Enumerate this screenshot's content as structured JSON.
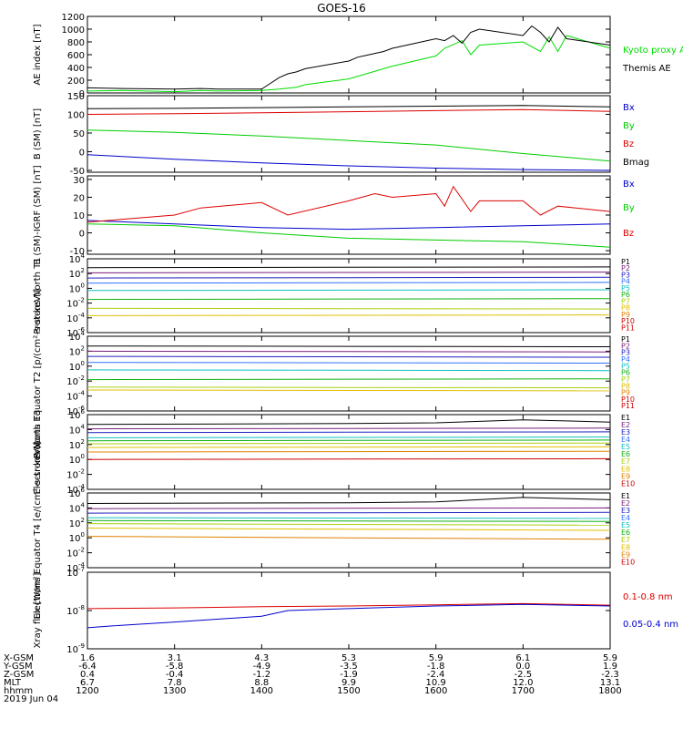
{
  "title": "GOES-16",
  "chart_data": [
    {
      "type": "line",
      "ylabel": "AE index [nT]",
      "yscale": "linear",
      "ylim": [
        0,
        1200
      ],
      "yticks": [
        "0",
        "200",
        "400",
        "600",
        "800",
        "1000",
        "1200"
      ],
      "xlim": [
        1200,
        1800
      ],
      "series": [
        {
          "name": "Kyoto proxy AE",
          "color": "#00dd00",
          "x": [
            1200,
            1240,
            1300,
            1330,
            1350,
            1400,
            1420,
            1440,
            1450,
            1500,
            1520,
            1540,
            1550,
            1600,
            1610,
            1630,
            1640,
            1650,
            1700,
            1720,
            1730,
            1740,
            1750,
            1800
          ],
          "y": [
            30,
            40,
            20,
            40,
            30,
            40,
            60,
            90,
            130,
            220,
            300,
            380,
            420,
            580,
            700,
            820,
            600,
            750,
            800,
            650,
            880,
            650,
            900,
            700
          ]
        },
        {
          "name": "Themis AE",
          "color": "#000000",
          "x": [
            1200,
            1240,
            1300,
            1330,
            1350,
            1400,
            1410,
            1420,
            1430,
            1440,
            1450,
            1500,
            1510,
            1520,
            1530,
            1540,
            1550,
            1600,
            1610,
            1620,
            1630,
            1640,
            1650,
            1700,
            1710,
            1720,
            1730,
            1740,
            1750,
            1800
          ],
          "y": [
            80,
            70,
            60,
            70,
            60,
            60,
            150,
            240,
            300,
            330,
            380,
            500,
            560,
            590,
            620,
            650,
            700,
            850,
            820,
            900,
            780,
            950,
            1000,
            900,
            1050,
            950,
            800,
            1030,
            850,
            750
          ]
        }
      ]
    },
    {
      "type": "line",
      "ylabel": "B (SM) [nT]",
      "yscale": "linear",
      "ylim": [
        -55,
        150
      ],
      "yticks": [
        "-50",
        "0",
        "50",
        "100",
        "150"
      ],
      "xlim": [
        1200,
        1800
      ],
      "series": [
        {
          "name": "Bx",
          "color": "#0000cc",
          "x": [
            1200,
            1300,
            1400,
            1500,
            1600,
            1700,
            1800
          ],
          "y": [
            -8,
            -20,
            -30,
            -38,
            -44,
            -48,
            -50
          ]
        },
        {
          "name": "By",
          "color": "#00cc00",
          "x": [
            1200,
            1300,
            1400,
            1500,
            1600,
            1700,
            1800
          ],
          "y": [
            58,
            52,
            42,
            30,
            18,
            -5,
            -25
          ]
        },
        {
          "name": "Bz",
          "color": "#dd0000",
          "x": [
            1200,
            1300,
            1400,
            1500,
            1600,
            1700,
            1800
          ],
          "y": [
            100,
            102,
            104,
            107,
            110,
            113,
            108
          ]
        },
        {
          "name": "Bmag",
          "color": "#000000",
          "x": [
            1200,
            1300,
            1400,
            1500,
            1600,
            1700,
            1800
          ],
          "y": [
            115,
            116,
            118,
            120,
            122,
            124,
            120
          ]
        }
      ]
    },
    {
      "type": "line",
      "ylabel": "B (SM)-IGRF (SM) [nT]",
      "yscale": "linear",
      "ylim": [
        -12,
        32
      ],
      "yticks": [
        "-10",
        "0",
        "10",
        "20",
        "30"
      ],
      "xlim": [
        1200,
        1800
      ],
      "series": [
        {
          "name": "Bx",
          "color": "#0000cc",
          "x": [
            1200,
            1300,
            1400,
            1500,
            1600,
            1700,
            1800
          ],
          "y": [
            7,
            5,
            3,
            2,
            3,
            4,
            5
          ]
        },
        {
          "name": "By",
          "color": "#00cc00",
          "x": [
            1200,
            1300,
            1400,
            1500,
            1600,
            1700,
            1800
          ],
          "y": [
            5,
            4,
            0,
            -3,
            -4,
            -5,
            -8
          ]
        },
        {
          "name": "Bz",
          "color": "#dd0000",
          "x": [
            1200,
            1300,
            1330,
            1400,
            1430,
            1500,
            1530,
            1550,
            1600,
            1610,
            1620,
            1640,
            1650,
            1700,
            1720,
            1740,
            1800
          ],
          "y": [
            6,
            10,
            14,
            17,
            10,
            18,
            22,
            20,
            22,
            15,
            26,
            12,
            18,
            18,
            10,
            15,
            12
          ]
        }
      ]
    },
    {
      "type": "line",
      "ylabel": "Protons North T1",
      "yscale": "log",
      "ylim_exp": [
        -6,
        4
      ],
      "yticks": [
        "10^4",
        "10^2",
        "10^0",
        "10^-2",
        "10^-4",
        "10^-6"
      ],
      "xlim": [
        1200,
        1800
      ],
      "series": [
        {
          "name": "P1",
          "color": "#000000",
          "x": [
            1200,
            1800
          ],
          "log10y": [
            2.8,
            2.9
          ]
        },
        {
          "name": "P2",
          "color": "#7a1e7a",
          "x": [
            1200,
            1800
          ],
          "log10y": [
            2.1,
            2.2
          ]
        },
        {
          "name": "P3",
          "color": "#2020c0",
          "x": [
            1200,
            1800
          ],
          "log10y": [
            1.4,
            1.5
          ]
        },
        {
          "name": "P4",
          "color": "#3070ff",
          "x": [
            1200,
            1800
          ],
          "log10y": [
            0.7,
            0.8
          ]
        },
        {
          "name": "P5",
          "color": "#10c0c0",
          "x": [
            1200,
            1800
          ],
          "log10y": [
            -0.3,
            -0.2
          ]
        },
        {
          "name": "P6",
          "color": "#10b010",
          "x": [
            1200,
            1800
          ],
          "log10y": [
            -1.5,
            -1.4
          ]
        },
        {
          "name": "P7",
          "color": "#a8d010",
          "x": [
            1200,
            1800
          ],
          "log10y": [
            -2.7,
            -2.8
          ]
        },
        {
          "name": "P8",
          "color": "#e0c000",
          "x": [
            1200,
            1800
          ],
          "log10y": [
            -3.7,
            -3.6
          ]
        }
      ],
      "legend": [
        "P1",
        "P2",
        "P3",
        "P4",
        "P5",
        "P6",
        "P7",
        "P8",
        "P9",
        "P10",
        "P11"
      ]
    },
    {
      "type": "line",
      "ylabel": "Protons Equator T2 [p/(cm²-s-sr-keV)]",
      "yscale": "log",
      "ylim_exp": [
        -6,
        4
      ],
      "yticks": [
        "10^4",
        "10^2",
        "10^0",
        "10^-2",
        "10^-4",
        "10^-6"
      ],
      "xlim": [
        1200,
        1800
      ],
      "series": [
        {
          "name": "P1",
          "color": "#000000",
          "x": [
            1200,
            1800
          ],
          "log10y": [
            2.7,
            2.6
          ]
        },
        {
          "name": "P2",
          "color": "#7a1e7a",
          "x": [
            1200,
            1800
          ],
          "log10y": [
            2.0,
            1.9
          ]
        },
        {
          "name": "P3",
          "color": "#2020c0",
          "x": [
            1200,
            1800
          ],
          "log10y": [
            1.3,
            1.2
          ]
        },
        {
          "name": "P4",
          "color": "#3070ff",
          "x": [
            1200,
            1800
          ],
          "log10y": [
            0.5,
            0.4
          ]
        },
        {
          "name": "P5",
          "color": "#10c0c0",
          "x": [
            1200,
            1800
          ],
          "log10y": [
            -0.5,
            -0.6
          ]
        },
        {
          "name": "P6",
          "color": "#10b010",
          "x": [
            1200,
            1800
          ],
          "log10y": [
            -1.8,
            -1.7
          ]
        },
        {
          "name": "P7",
          "color": "#a8d010",
          "x": [
            1200,
            1800
          ],
          "log10y": [
            -2.8,
            -2.9
          ]
        },
        {
          "name": "P8",
          "color": "#e0c000",
          "x": [
            1200,
            1800
          ],
          "log10y": [
            -3.2,
            -3.3
          ]
        }
      ],
      "legend": [
        "P1",
        "P2",
        "P3",
        "P4",
        "P5",
        "P6",
        "P7",
        "P8",
        "P9",
        "P10",
        "P11"
      ]
    },
    {
      "type": "line",
      "ylabel": "Electrons North T3",
      "yscale": "log",
      "ylim_exp": [
        -4,
        6
      ],
      "yticks": [
        "10^6",
        "10^4",
        "10^2",
        "10^0",
        "10^-2",
        "10^-4"
      ],
      "xlim": [
        1200,
        1800
      ],
      "series": [
        {
          "name": "E1",
          "color": "#000000",
          "x": [
            1200,
            1500,
            1600,
            1700,
            1800
          ],
          "log10y": [
            4.7,
            4.8,
            4.9,
            5.3,
            5.0
          ]
        },
        {
          "name": "E2",
          "color": "#7a1e7a",
          "x": [
            1200,
            1800
          ],
          "log10y": [
            4.1,
            4.2
          ]
        },
        {
          "name": "E3",
          "color": "#2020c0",
          "x": [
            1200,
            1800
          ],
          "log10y": [
            3.6,
            3.7
          ]
        },
        {
          "name": "E4",
          "color": "#10c0c0",
          "x": [
            1200,
            1800
          ],
          "log10y": [
            2.9,
            3.0
          ]
        },
        {
          "name": "E5",
          "color": "#10b010",
          "x": [
            1200,
            1800
          ],
          "log10y": [
            2.5,
            2.6
          ]
        },
        {
          "name": "E6",
          "color": "#a8d010",
          "x": [
            1200,
            1800
          ],
          "log10y": [
            2.1,
            2.2
          ]
        },
        {
          "name": "E7",
          "color": "#e0c000",
          "x": [
            1200,
            1800
          ],
          "log10y": [
            1.6,
            1.7
          ]
        },
        {
          "name": "E8",
          "color": "#e08000",
          "x": [
            1200,
            1800
          ],
          "log10y": [
            1.0,
            1.1
          ]
        },
        {
          "name": "E9",
          "color": "#cc0000",
          "x": [
            1200,
            1800
          ],
          "log10y": [
            0.0,
            0.1
          ]
        }
      ],
      "legend": [
        "E1",
        "E2",
        "E3",
        "E4",
        "E5",
        "E6",
        "E7",
        "E8",
        "E9",
        "E10"
      ]
    },
    {
      "type": "line",
      "ylabel": "Electrons Equator T4 [e/(cm²-s-sr-keV)]",
      "yscale": "log",
      "ylim_exp": [
        -4,
        6
      ],
      "yticks": [
        "10^6",
        "10^4",
        "10^2",
        "10^0",
        "10^-2",
        "10^-4"
      ],
      "xlim": [
        1200,
        1800
      ],
      "series": [
        {
          "name": "E1",
          "color": "#000000",
          "x": [
            1200,
            1500,
            1600,
            1700,
            1800
          ],
          "log10y": [
            4.6,
            4.7,
            4.8,
            5.4,
            5.1
          ]
        },
        {
          "name": "E2",
          "color": "#7a1e7a",
          "x": [
            1200,
            1800
          ],
          "log10y": [
            3.9,
            4.0
          ]
        },
        {
          "name": "E3",
          "color": "#2020c0",
          "x": [
            1200,
            1800
          ],
          "log10y": [
            3.3,
            3.4
          ]
        },
        {
          "name": "E4",
          "color": "#10c0c0",
          "x": [
            1200,
            1800
          ],
          "log10y": [
            2.7,
            2.6
          ]
        },
        {
          "name": "E5",
          "color": "#10b010",
          "x": [
            1200,
            1800
          ],
          "log10y": [
            2.3,
            2.2
          ]
        },
        {
          "name": "E6",
          "color": "#a8d010",
          "x": [
            1200,
            1800
          ],
          "log10y": [
            1.9,
            1.7
          ]
        },
        {
          "name": "E7",
          "color": "#e0c000",
          "x": [
            1200,
            1800
          ],
          "log10y": [
            1.3,
            1.0
          ]
        },
        {
          "name": "E8",
          "color": "#e08000",
          "x": [
            1200,
            1800
          ],
          "log10y": [
            0.2,
            -0.2
          ]
        }
      ],
      "legend": [
        "E1",
        "E2",
        "E3",
        "E4",
        "E5",
        "E6",
        "E7",
        "E8",
        "E9",
        "E10"
      ]
    },
    {
      "type": "line",
      "ylabel": "Xray flux [W/m²]",
      "yscale": "log",
      "ylim_exp": [
        -9,
        -7
      ],
      "yticks": [
        "10^-7",
        "10^-8",
        "10^-9"
      ],
      "xlim": [
        1200,
        1800
      ],
      "series": [
        {
          "name": "0.1-0.8 nm",
          "color": "#dd0000",
          "x": [
            1200,
            1300,
            1400,
            1500,
            1600,
            1700,
            1800
          ],
          "log10y": [
            -7.95,
            -7.93,
            -7.9,
            -7.88,
            -7.85,
            -7.82,
            -7.86
          ]
        },
        {
          "name": "0.05-0.4 nm",
          "color": "#0000cc",
          "x": [
            1200,
            1230,
            1300,
            1400,
            1430,
            1500,
            1600,
            1700,
            1800
          ],
          "log10y": [
            -8.45,
            -8.4,
            -8.3,
            -8.15,
            -8.0,
            -7.95,
            -7.88,
            -7.84,
            -7.88
          ]
        }
      ]
    }
  ],
  "xaxis": {
    "rows": [
      {
        "label": "X-GSM",
        "values": [
          "1.6",
          "3.1",
          "4.3",
          "5.3",
          "5.9",
          "6.1",
          "5.9"
        ]
      },
      {
        "label": "Y-GSM",
        "values": [
          "-6.4",
          "-5.8",
          "-4.9",
          "-3.5",
          "-1.8",
          "0.0",
          "1.9"
        ]
      },
      {
        "label": "Z-GSM",
        "values": [
          "0.4",
          "-0.4",
          "-1.2",
          "-1.9",
          "-2.4",
          "-2.5",
          "-2.3"
        ]
      },
      {
        "label": "MLT",
        "values": [
          "6.7",
          "7.8",
          "8.8",
          "9.9",
          "10.9",
          "12.0",
          "13.1"
        ]
      },
      {
        "label": "hhmm",
        "values": [
          "1200",
          "1300",
          "1400",
          "1500",
          "1600",
          "1700",
          "1800"
        ]
      }
    ],
    "date": "2019 Jun 04"
  }
}
